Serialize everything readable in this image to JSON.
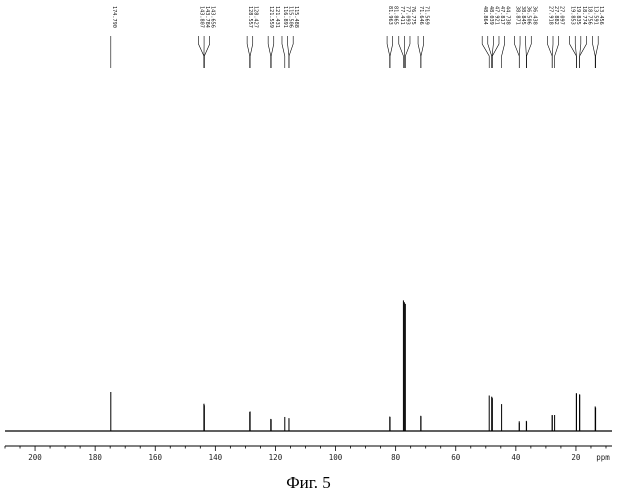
{
  "caption": "Фиг. 5",
  "chart_data": {
    "type": "line",
    "title": "",
    "xlabel": "ppm",
    "ylabel": "",
    "x_reversed": true,
    "xlim": [
      210,
      8
    ],
    "ylim": [
      0,
      100
    ],
    "x_ticks": [
      200,
      180,
      160,
      140,
      120,
      100,
      80,
      60,
      40,
      20
    ],
    "peaks": [
      {
        "shift": 174.79,
        "label": "174.790",
        "height": 100
      },
      {
        "shift": 143.807,
        "label": "143.807",
        "height": 69
      },
      {
        "shift": 143.784,
        "label": "143.784",
        "height": 70
      },
      {
        "shift": 143.656,
        "label": "143.656",
        "height": 66
      },
      {
        "shift": 128.557,
        "label": "128.557",
        "height": 49
      },
      {
        "shift": 128.427,
        "label": "128.427",
        "height": 50
      },
      {
        "shift": 121.559,
        "label": "121.559",
        "height": 31
      },
      {
        "shift": 121.431,
        "label": "121.431",
        "height": 30
      },
      {
        "shift": 116.891,
        "label": "116.891",
        "height": 36
      },
      {
        "shift": 115.506,
        "label": "115.506",
        "height": 33
      },
      {
        "shift": 115.488,
        "label": "115.488",
        "height": 31
      },
      {
        "shift": 81.963,
        "label": "81.963",
        "height": 37
      },
      {
        "shift": 81.865,
        "label": "81.865",
        "height": 36
      },
      {
        "shift": 77.411,
        "label": "77.411",
        "height": 335
      },
      {
        "shift": 77.093,
        "label": "77.093",
        "height": 330
      },
      {
        "shift": 76.775,
        "label": "76.775",
        "height": 326
      },
      {
        "shift": 71.646,
        "label": "71.646",
        "height": 39
      },
      {
        "shift": 71.569,
        "label": "71.569",
        "height": 38
      },
      {
        "shift": 48.864,
        "label": "48.864",
        "height": 91
      },
      {
        "shift": 48.039,
        "label": "48.039",
        "height": 88
      },
      {
        "shift": 47.921,
        "label": "47.921",
        "height": 86
      },
      {
        "shift": 47.817,
        "label": "47.817",
        "height": 84
      },
      {
        "shift": 44.738,
        "label": "44.738",
        "height": 69
      },
      {
        "shift": 38.871,
        "label": "38.871",
        "height": 25
      },
      {
        "shift": 38.845,
        "label": "38.845",
        "height": 21
      },
      {
        "shift": 36.506,
        "label": "36.506",
        "height": 26
      },
      {
        "shift": 36.438,
        "label": "36.438",
        "height": 24
      },
      {
        "shift": 27.918,
        "label": "27.918",
        "height": 41
      },
      {
        "shift": 27.882,
        "label": "27.882",
        "height": 40
      },
      {
        "shift": 27.097,
        "label": "27.097",
        "height": 41
      },
      {
        "shift": 19.853,
        "label": "19.853",
        "height": 97
      },
      {
        "shift": 19.835,
        "label": "19.835",
        "height": 96
      },
      {
        "shift": 18.774,
        "label": "18.774",
        "height": 94
      },
      {
        "shift": 18.756,
        "label": "18.756",
        "height": 93
      },
      {
        "shift": 13.591,
        "label": "13.591",
        "height": 63
      },
      {
        "shift": 13.456,
        "label": "13.456",
        "height": 60
      }
    ]
  }
}
